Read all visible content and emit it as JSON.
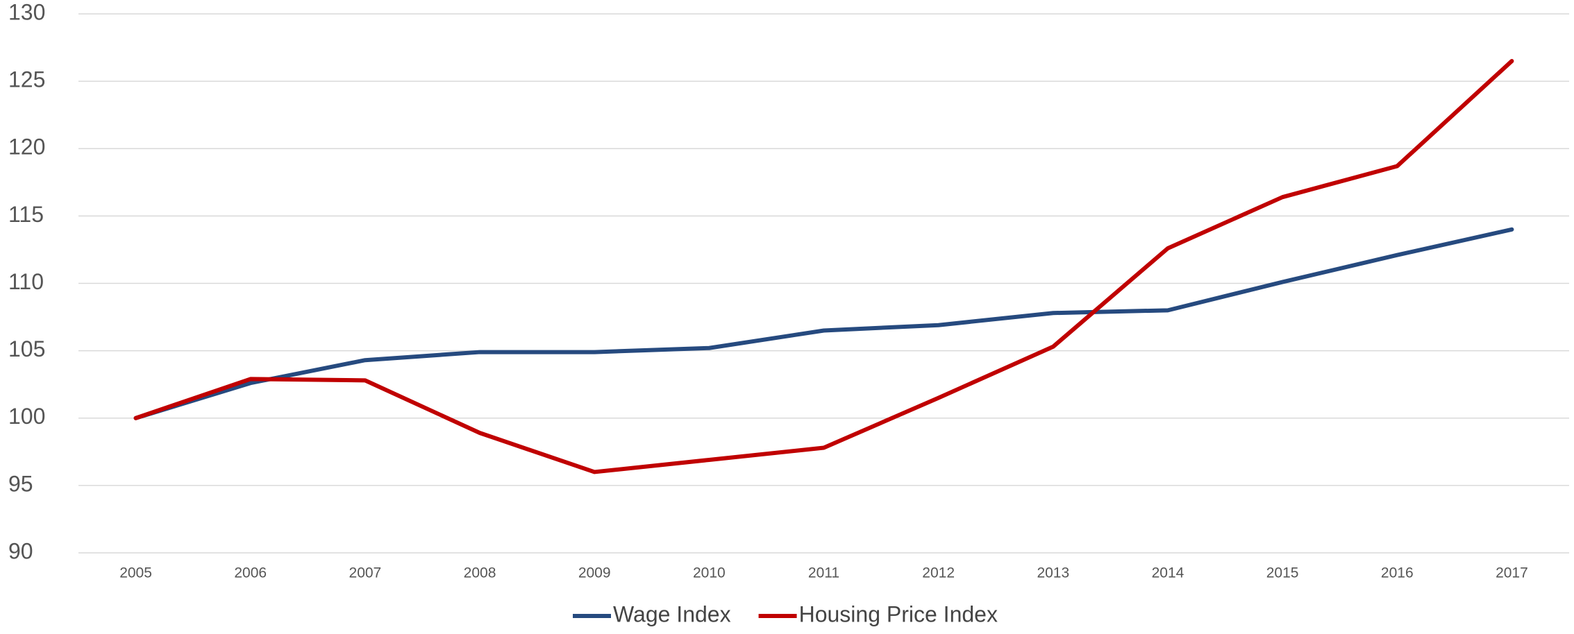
{
  "chart_data": {
    "type": "line",
    "categories": [
      "2005",
      "2006",
      "2007",
      "2008",
      "2009",
      "2010",
      "2011",
      "2012",
      "2013",
      "2014",
      "2015",
      "2016",
      "2017"
    ],
    "series": [
      {
        "name": "Wage Index",
        "color": "#264a7f",
        "values": [
          100,
          102.6,
          104.3,
          104.9,
          104.9,
          105.2,
          106.5,
          106.9,
          107.8,
          108.0,
          110.1,
          112.1,
          114.0
        ]
      },
      {
        "name": "Housing Price Index",
        "color": "#c00000",
        "values": [
          100,
          102.9,
          102.8,
          98.9,
          96.0,
          96.9,
          97.8,
          101.5,
          105.3,
          112.6,
          116.4,
          118.7,
          126.5
        ]
      }
    ],
    "ylim": [
      90,
      130
    ],
    "yticks": [
      90,
      95,
      100,
      105,
      110,
      115,
      120,
      125,
      130
    ],
    "grid": true,
    "legend": "bottom"
  }
}
